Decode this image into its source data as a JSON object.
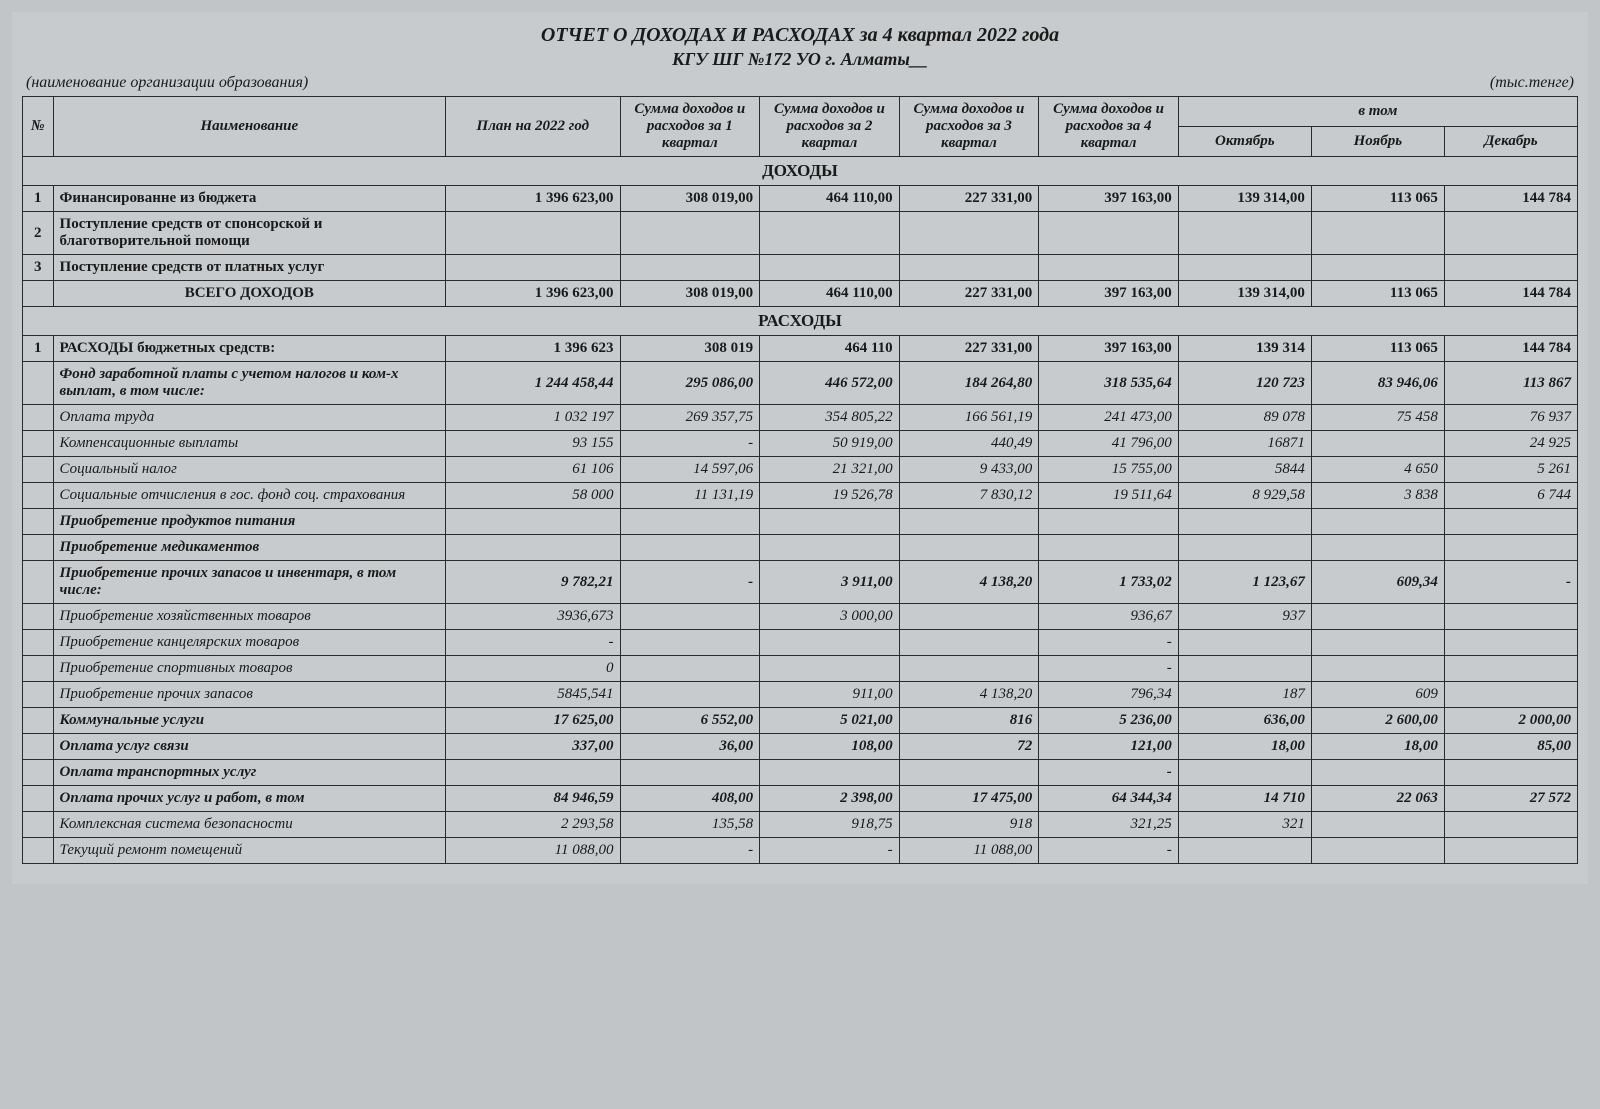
{
  "title": "ОТЧЕТ О ДОХОДАХ И РАСХОДАХ за 4 квартал 2022 года",
  "subtitle": "КГУ ШГ №172 УО г. Алматы__",
  "org_note": "(наименование организации образования)",
  "unit_note": "(тыс.тенге)",
  "columns": {
    "num": "№",
    "name": "Наименование",
    "plan": "План на 2022 год",
    "q1": "Сумма доходов и расходов за 1 квартал",
    "q2": "Сумма доходов и расходов за 2 квартал",
    "q3": "Сумма доходов и расходов за 3 квартал",
    "q4": "Сумма доходов и расходов за 4 квартал",
    "in_that": "в том",
    "oct": "Октябрь",
    "nov": "Ноябрь",
    "dec": "Декабрь"
  },
  "sections": {
    "income": "ДОХОДЫ",
    "expense": "РАСХОДЫ"
  },
  "rows": {
    "r1": {
      "num": "1",
      "name": "Финансированне из бюджета",
      "plan": "1 396 623,00",
      "q1": "308 019,00",
      "q2": "464 110,00",
      "q3": "227 331,00",
      "q4": "397 163,00",
      "oct": "139 314,00",
      "nov": "113 065",
      "dec": "144 784"
    },
    "r2": {
      "num": "2",
      "name": "Поступление средств от спонсорской и благотворительной помощи",
      "plan": "",
      "q1": "",
      "q2": "",
      "q3": "",
      "q4": "",
      "oct": "",
      "nov": "",
      "dec": ""
    },
    "r3": {
      "num": "3",
      "name": "Поступление средств от платных услуг",
      "plan": "",
      "q1": "",
      "q2": "",
      "q3": "",
      "q4": "",
      "oct": "",
      "nov": "",
      "dec": ""
    },
    "rtot": {
      "num": "",
      "name": "ВСЕГО ДОХОДОВ",
      "plan": "1 396 623,00",
      "q1": "308 019,00",
      "q2": "464 110,00",
      "q3": "227 331,00",
      "q4": "397 163,00",
      "oct": "139 314,00",
      "nov": "113 065",
      "dec": "144 784"
    },
    "e1": {
      "num": "1",
      "name": "РАСХОДЫ бюджетных средств:",
      "plan": "1 396 623",
      "q1": "308 019",
      "q2": "464 110",
      "q3": "227 331,00",
      "q4": "397 163,00",
      "oct": "139 314",
      "nov": "113 065",
      "dec": "144 784"
    },
    "e2": {
      "num": "",
      "name": "Фонд заработной платы с учетом налогов и ком-х выплат, в том числе:",
      "plan": "1 244 458,44",
      "q1": "295 086,00",
      "q2": "446 572,00",
      "q3": "184 264,80",
      "q4": "318 535,64",
      "oct": "120 723",
      "nov": "83 946,06",
      "dec": "113 867"
    },
    "e3": {
      "num": "",
      "name": "Оплата труда",
      "plan": "1 032 197",
      "q1": "269 357,75",
      "q2": "354 805,22",
      "q3": "166 561,19",
      "q4": "241 473,00",
      "oct": "89 078",
      "nov": "75 458",
      "dec": "76 937"
    },
    "e4": {
      "num": "",
      "name": "Компенсационные выплаты",
      "plan": "93 155",
      "q1": "-",
      "q2": "50 919,00",
      "q3": "440,49",
      "q4": "41 796,00",
      "oct": "16871",
      "nov": "",
      "dec": "24 925"
    },
    "e5": {
      "num": "",
      "name": "Социальный налог",
      "plan": "61 106",
      "q1": "14 597,06",
      "q2": "21 321,00",
      "q3": "9 433,00",
      "q4": "15 755,00",
      "oct": "5844",
      "nov": "4 650",
      "dec": "5 261"
    },
    "e6": {
      "num": "",
      "name": "Социальные отчисления в гос. фонд соц. страхования",
      "plan": "58 000",
      "q1": "11 131,19",
      "q2": "19 526,78",
      "q3": "7 830,12",
      "q4": "19 511,64",
      "oct": "8 929,58",
      "nov": "3 838",
      "dec": "6 744"
    },
    "e7": {
      "num": "",
      "name": "Приобретение продуктов питания",
      "plan": "",
      "q1": "",
      "q2": "",
      "q3": "",
      "q4": "",
      "oct": "",
      "nov": "",
      "dec": ""
    },
    "e8": {
      "num": "",
      "name": "Приобретение медикаментов",
      "plan": "",
      "q1": "",
      "q2": "",
      "q3": "",
      "q4": "",
      "oct": "",
      "nov": "",
      "dec": ""
    },
    "e9": {
      "num": "",
      "name": "Приобретение прочих запасов и инвентаря, в том числе:",
      "plan": "9 782,21",
      "q1": "-",
      "q2": "3 911,00",
      "q3": "4 138,20",
      "q4": "1 733,02",
      "oct": "1 123,67",
      "nov": "609,34",
      "dec": "-"
    },
    "e10": {
      "num": "",
      "name": "Приобретение хозяйственных товаров",
      "plan": "3936,673",
      "q1": "",
      "q2": "3 000,00",
      "q3": "",
      "q4": "936,67",
      "oct": "937",
      "nov": "",
      "dec": ""
    },
    "e11": {
      "num": "",
      "name": "Приобретение канцелярских товаров",
      "plan": "-",
      "q1": "",
      "q2": "",
      "q3": "",
      "q4": "-",
      "oct": "",
      "nov": "",
      "dec": ""
    },
    "e12": {
      "num": "",
      "name": "Приобретение спортивных товаров",
      "plan": "0",
      "q1": "",
      "q2": "",
      "q3": "",
      "q4": "-",
      "oct": "",
      "nov": "",
      "dec": ""
    },
    "e13": {
      "num": "",
      "name": "Приобретение прочих запасов",
      "plan": "5845,541",
      "q1": "",
      "q2": "911,00",
      "q3": "4 138,20",
      "q4": "796,34",
      "oct": "187",
      "nov": "609",
      "dec": ""
    },
    "e14": {
      "num": "",
      "name": "Коммунальные услуги",
      "plan": "17 625,00",
      "q1": "6 552,00",
      "q2": "5 021,00",
      "q3": "816",
      "q4": "5 236,00",
      "oct": "636,00",
      "nov": "2 600,00",
      "dec": "2 000,00"
    },
    "e15": {
      "num": "",
      "name": "Оплата услуг связи",
      "plan": "337,00",
      "q1": "36,00",
      "q2": "108,00",
      "q3": "72",
      "q4": "121,00",
      "oct": "18,00",
      "nov": "18,00",
      "dec": "85,00"
    },
    "e16": {
      "num": "",
      "name": "Оплата транспортных услуг",
      "plan": "",
      "q1": "",
      "q2": "",
      "q3": "",
      "q4": "-",
      "oct": "",
      "nov": "",
      "dec": ""
    },
    "e17": {
      "num": "",
      "name": "Оплата прочих услуг и работ, в том",
      "plan": "84 946,59",
      "q1": "408,00",
      "q2": "2 398,00",
      "q3": "17 475,00",
      "q4": "64 344,34",
      "oct": "14 710",
      "nov": "22 063",
      "dec": "27 572"
    },
    "e18": {
      "num": "",
      "name": "Комплексная система безопасности",
      "plan": "2 293,58",
      "q1": "135,58",
      "q2": "918,75",
      "q3": "918",
      "q4": "321,25",
      "oct": "321",
      "nov": "",
      "dec": ""
    },
    "e19": {
      "num": "",
      "name": "Текущий ремонт помещений",
      "plan": "11 088,00",
      "q1": "-",
      "q2": "-",
      "q3": "11 088,00",
      "q4": "-",
      "oct": "",
      "nov": "",
      "dec": ""
    }
  },
  "style": {
    "background": "#c8cbcd",
    "border": "#2a2a2a",
    "font_family": "Times New Roman",
    "title_fontsize": 20,
    "header_fontsize": 15,
    "cell_fontsize": 15
  }
}
